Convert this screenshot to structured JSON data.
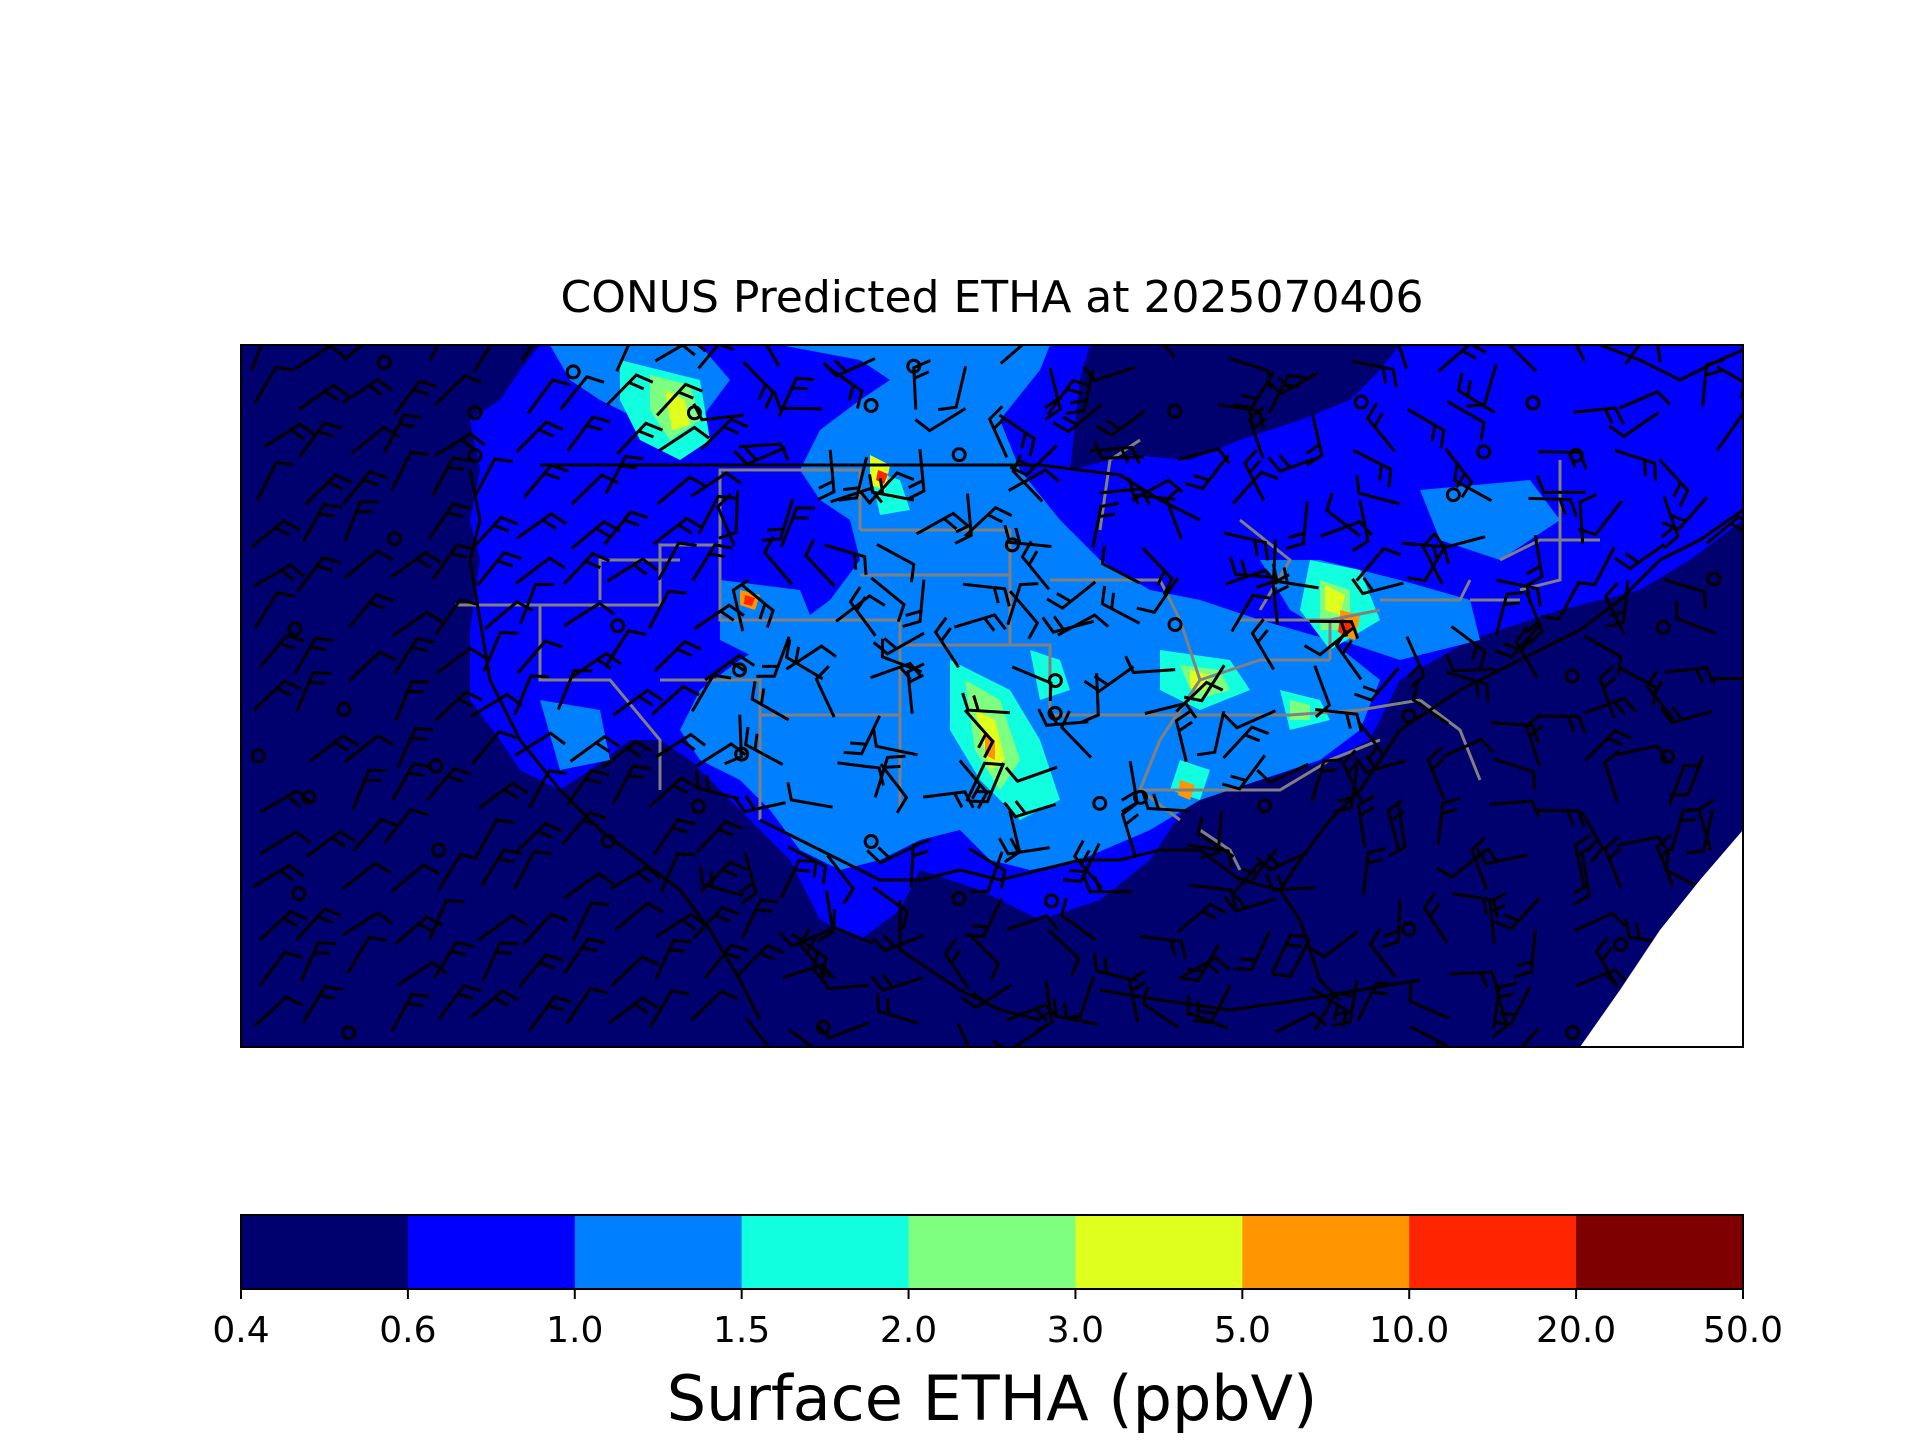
{
  "chart_data": {
    "type": "heatmap",
    "title": "CONUS Predicted ETHA at 2025070406",
    "region": "CONUS",
    "variable": "ETHA",
    "overlays": [
      "wind barbs",
      "state boundaries",
      "coastlines"
    ],
    "colorbar": {
      "label": "Surface ETHA (ppbV)",
      "orientation": "horizontal",
      "levels": [
        0.4,
        0.6,
        1.0,
        1.5,
        2.0,
        3.0,
        5.0,
        10.0,
        20.0,
        50.0
      ],
      "tick_labels": [
        "0.4",
        "0.6",
        "1.0",
        "1.5",
        "2.0",
        "3.0",
        "5.0",
        "10.0",
        "20.0",
        "50.0"
      ],
      "colors": [
        "#00006e",
        "#0000ff",
        "#0080ff",
        "#11ffdf",
        "#7fff7f",
        "#dfff1f",
        "#ff9500",
        "#ff2500",
        "#7f0000"
      ]
    }
  }
}
